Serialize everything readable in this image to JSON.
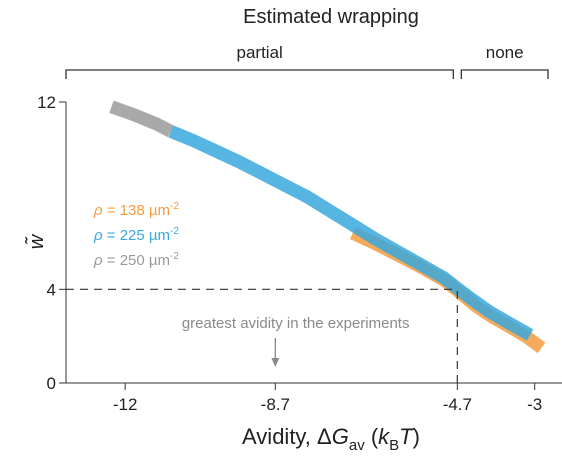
{
  "chart_data": {
    "type": "line",
    "title": "Estimated wrapping",
    "xlabel": {
      "prefix": "Avidity, ",
      "delta": "Δ",
      "G": "G",
      "G_sub": "av",
      "paren_open": " (",
      "k": "k",
      "k_sub": "B",
      "T": "T",
      "paren_close": ")"
    },
    "ylabel": "w̃",
    "xlim": [
      -13.3,
      -2.4
    ],
    "ylim": [
      0,
      12.6
    ],
    "x_ticks": [
      -12,
      -8.7,
      -4.7,
      -3
    ],
    "x_tick_labels": [
      "-12",
      "-8.7",
      "-4.7",
      "-3"
    ],
    "y_ticks": [
      0,
      4,
      12
    ],
    "y_tick_labels": [
      "0",
      "4",
      "12"
    ],
    "regions": [
      {
        "label": "partial",
        "from": -13.3,
        "to": -4.7
      },
      {
        "label": "none",
        "from": -4.7,
        "to": -2.4
      }
    ],
    "reference_lines": [
      {
        "orientation": "horizontal",
        "y": 4,
        "x_from": -13.3,
        "x_to": -4.7,
        "style": "dashed"
      },
      {
        "orientation": "vertical",
        "x": -4.7,
        "y_from": 0,
        "y_to": 4,
        "style": "dashed"
      }
    ],
    "annotation": {
      "text": "greatest avidity in the experiments",
      "x": -8.7,
      "arrow_to_y": 0.5
    },
    "legend": {
      "placement": "left",
      "rho_symbol": "ρ",
      "unit": " µm",
      "unit_exp": "-2",
      "entries": [
        {
          "value": "138",
          "color": "#F59B3E"
        },
        {
          "value": "225",
          "color": "#3AA8DC"
        },
        {
          "value": "250",
          "color": "#9A9A9A"
        }
      ]
    },
    "series": [
      {
        "color": "#F59B3E",
        "x": [
          -7.0,
          -6.5,
          -6.0,
          -5.5,
          -5.0,
          -4.7,
          -4.3,
          -4.0,
          -3.6,
          -3.2,
          -2.85
        ],
        "y": [
          6.4,
          5.95,
          5.45,
          4.95,
          4.4,
          3.95,
          3.3,
          2.9,
          2.45,
          2.0,
          1.5
        ]
      },
      {
        "color": "#3AA8DC",
        "x": [
          -11.0,
          -10.5,
          -10.0,
          -9.5,
          -9.0,
          -8.5,
          -8.0,
          -7.5,
          -7.0,
          -6.5,
          -6.0,
          -5.5,
          -5.0,
          -4.7,
          -4.4,
          -4.0,
          -3.6,
          -3.1
        ],
        "y": [
          10.75,
          10.35,
          9.9,
          9.45,
          8.95,
          8.45,
          7.95,
          7.35,
          6.75,
          6.15,
          5.6,
          5.05,
          4.5,
          4.05,
          3.6,
          3.05,
          2.6,
          2.05
        ]
      },
      {
        "color": "#9A9A9A",
        "x": [
          -12.3,
          -11.8,
          -11.3,
          -11.0
        ],
        "y": [
          11.8,
          11.45,
          11.05,
          10.75
        ]
      }
    ]
  }
}
